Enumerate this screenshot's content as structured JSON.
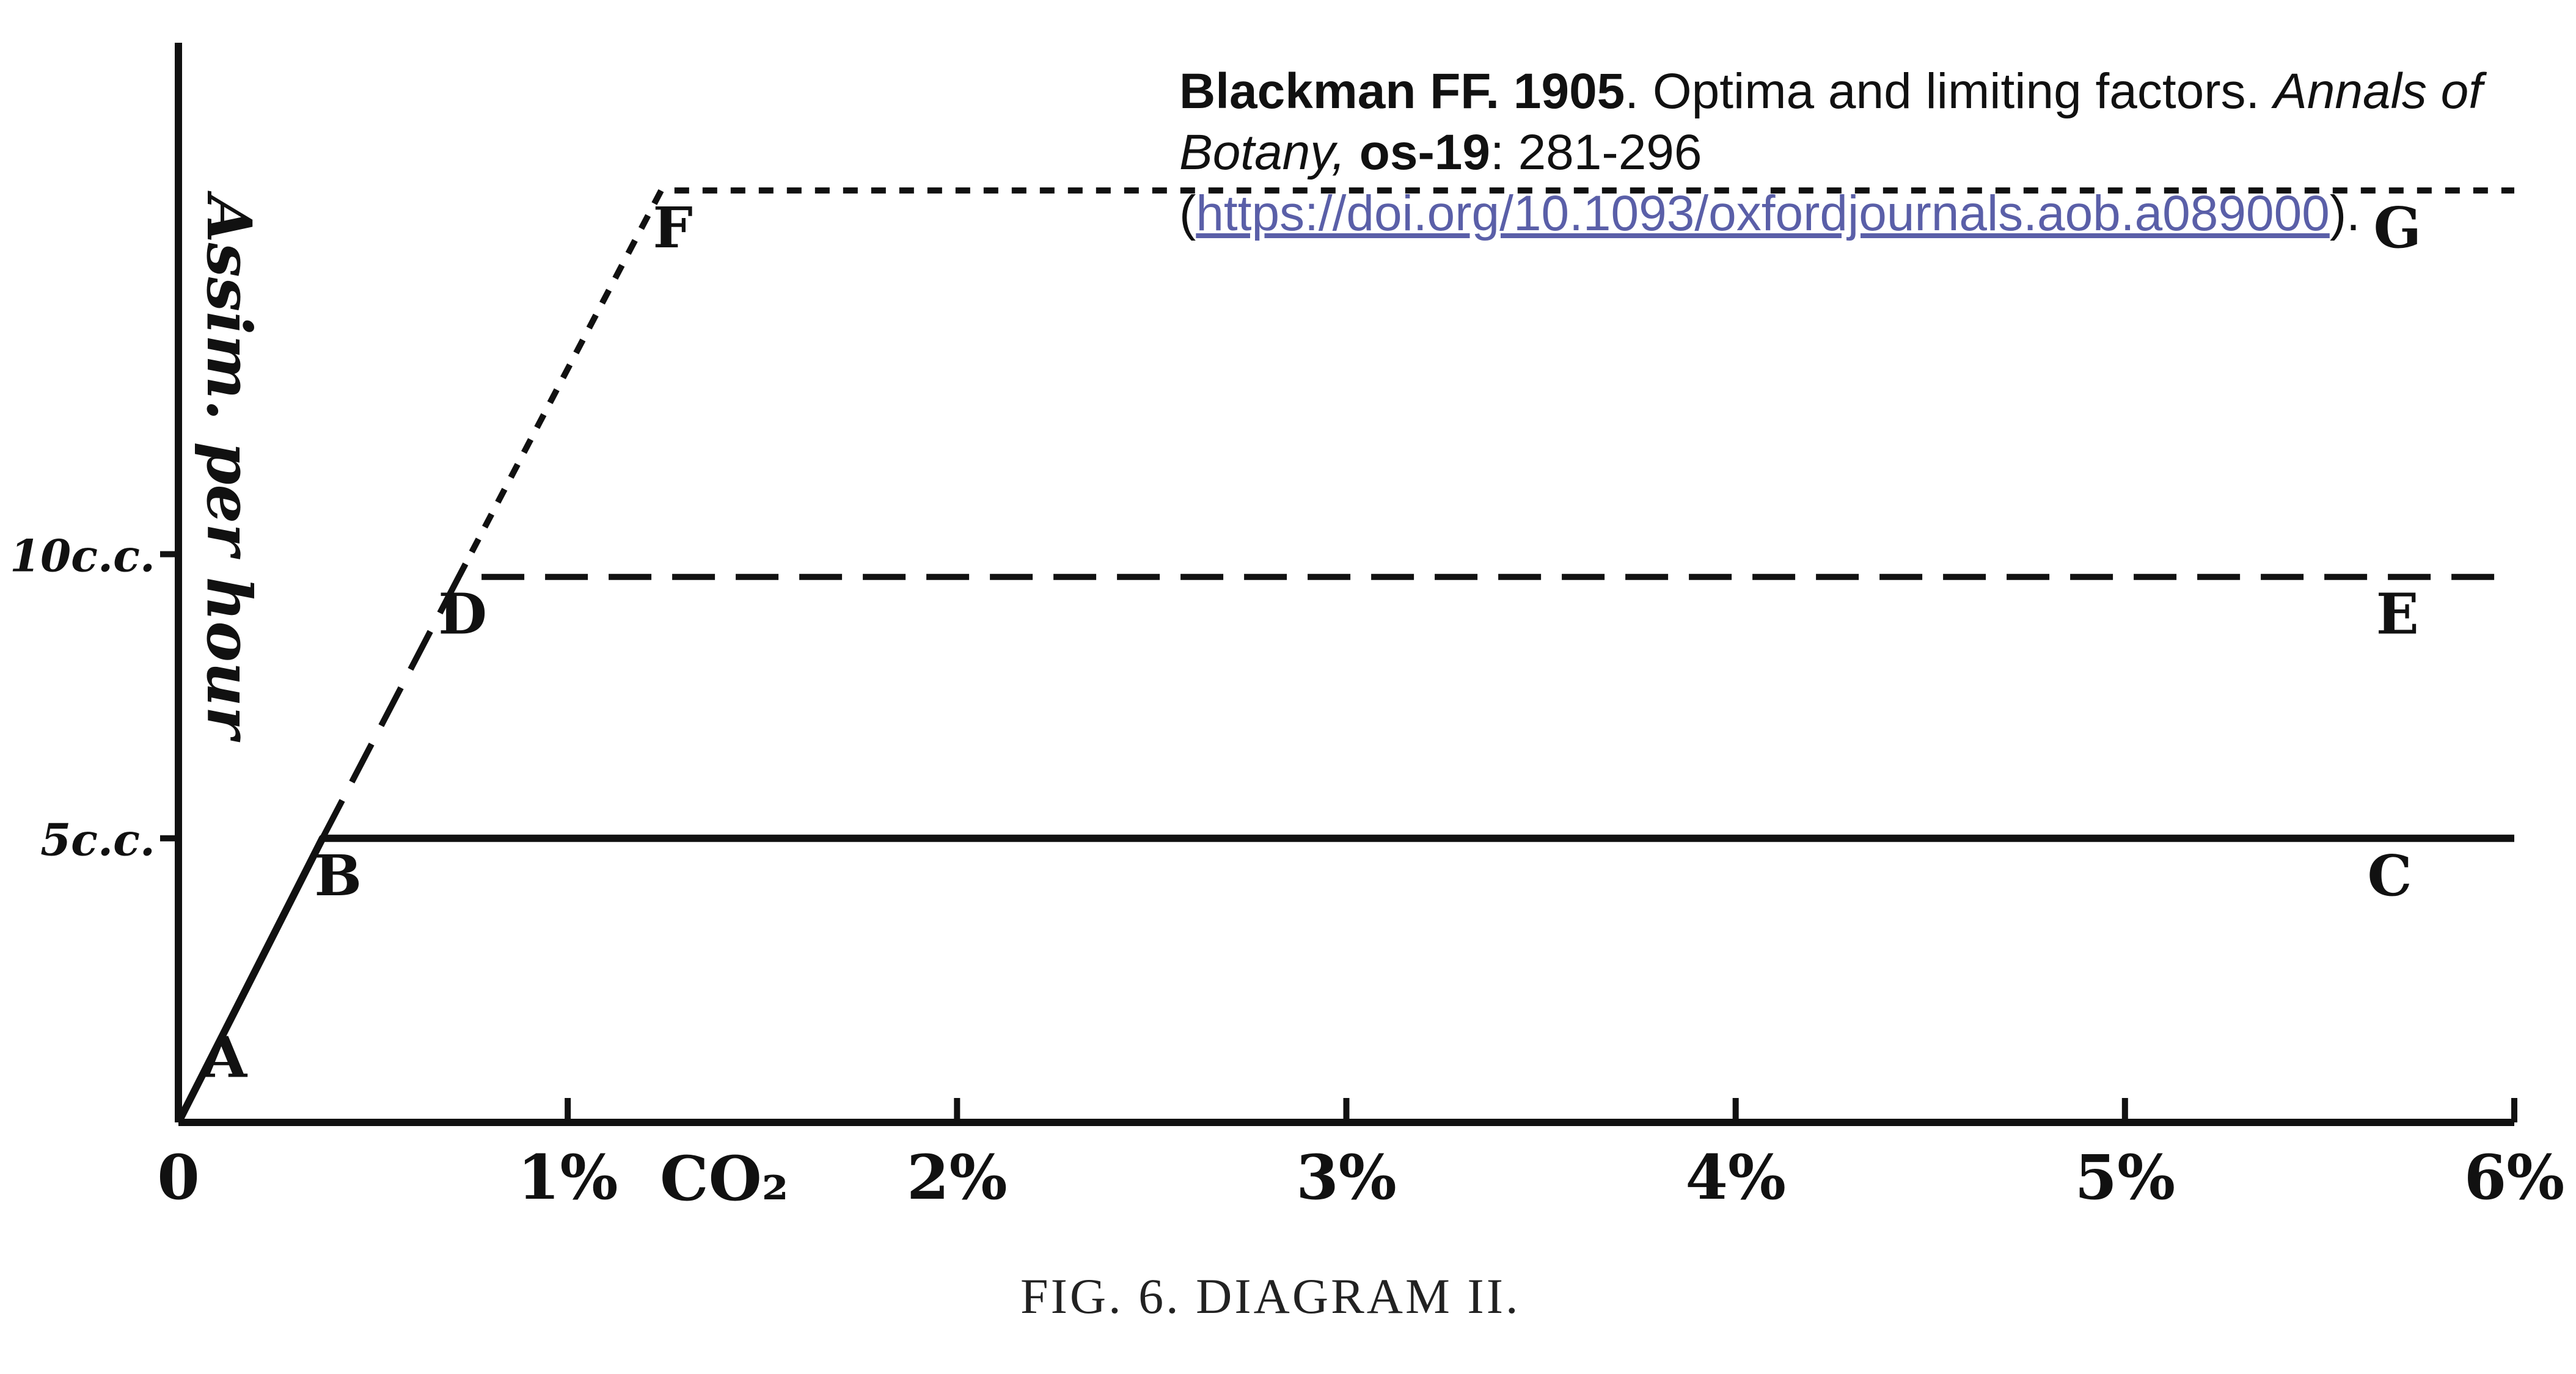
{
  "citation": {
    "author_year": "Blackman FF. 1905",
    "title": ". Optima and limiting factors. ",
    "journal": "Annals of Botany,",
    "volume": "os-19",
    "pages": ": 281-296",
    "open_paren": "(",
    "doi_url": "https://doi.org/10.1093/oxfordjournals.aob.a089000",
    "close_paren": ").",
    "link_color": "#5a5fa8"
  },
  "chart_data": {
    "type": "line",
    "title": "",
    "caption": "FIG. 6.   DIAGRAM II.",
    "xlabel": "CO₂",
    "ylabel": "Assim. per hour",
    "xlim": [
      0,
      6
    ],
    "ylim": [
      0,
      19
    ],
    "x_ticks": [
      {
        "value": 0,
        "label": "0"
      },
      {
        "value": 1,
        "label": "1%"
      },
      {
        "value": 2,
        "label": "2%"
      },
      {
        "value": 3,
        "label": "3%"
      },
      {
        "value": 4,
        "label": "4%"
      },
      {
        "value": 5,
        "label": "5%"
      },
      {
        "value": 6,
        "label": "6%"
      }
    ],
    "y_ticks": [
      {
        "value": 5,
        "label": "5c.c."
      },
      {
        "value": 10,
        "label": "10c.c."
      }
    ],
    "series": [
      {
        "style": "solid",
        "x": [
          0,
          0.37,
          6
        ],
        "y": [
          0,
          5,
          5
        ]
      },
      {
        "style": "dashed",
        "x": [
          0.37,
          0.72,
          6
        ],
        "y": [
          5,
          9.6,
          9.6
        ]
      },
      {
        "style": "dotted",
        "x": [
          0.72,
          1.24,
          6
        ],
        "y": [
          9.6,
          16.4,
          16.4
        ]
      }
    ],
    "points": [
      {
        "label": "A",
        "x": 0.12,
        "y": 0.8
      },
      {
        "label": "B",
        "x": 0.41,
        "y": 4.0
      },
      {
        "label": "C",
        "x": 5.68,
        "y": 4.0
      },
      {
        "label": "D",
        "x": 0.73,
        "y": 8.6
      },
      {
        "label": "E",
        "x": 5.7,
        "y": 8.6
      },
      {
        "label": "F",
        "x": 1.27,
        "y": 15.4
      },
      {
        "label": "G",
        "x": 5.7,
        "y": 15.4
      }
    ],
    "grid": false,
    "colors": {
      "ink": "#111111"
    }
  }
}
